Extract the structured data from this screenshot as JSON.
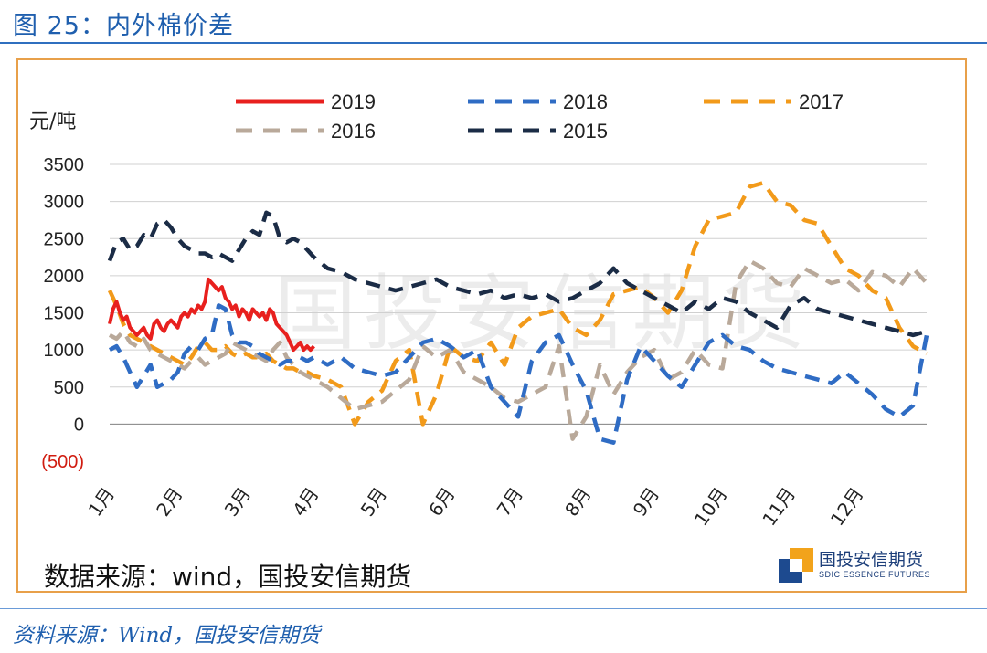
{
  "figure": {
    "title": "图 25：内外棉价差",
    "source_note": "数据来源：wind，国投安信期货",
    "footer": "资料来源：Wind，国投安信期货",
    "watermark": "国投安信期货",
    "logo": {
      "cn": "国投安信期货",
      "en": "SDIC ESSENCE FUTURES"
    }
  },
  "chart_data": {
    "type": "line",
    "title": "",
    "xlabel": "",
    "ylabel": "元/吨",
    "ylim": [
      -500,
      3500
    ],
    "yticks": [
      3500,
      3000,
      2500,
      2000,
      1500,
      1000,
      500,
      0,
      -500
    ],
    "ytick_labels": [
      "3500",
      "3000",
      "2500",
      "2000",
      "1500",
      "1000",
      "500",
      "0",
      "(500)"
    ],
    "x_range": [
      1,
      13
    ],
    "categories": [
      "1月",
      "2月",
      "3月",
      "4月",
      "5月",
      "6月",
      "7月",
      "8月",
      "9月",
      "10月",
      "11月",
      "12月"
    ],
    "grid": true,
    "legend_position": "top",
    "series": [
      {
        "name": "2019",
        "color": "#e8201e",
        "dash": "solid",
        "x": [
          1.0,
          1.05,
          1.1,
          1.15,
          1.2,
          1.25,
          1.3,
          1.35,
          1.4,
          1.45,
          1.5,
          1.55,
          1.6,
          1.65,
          1.7,
          1.75,
          1.8,
          1.85,
          1.9,
          1.95,
          2.0,
          2.05,
          2.1,
          2.15,
          2.2,
          2.25,
          2.3,
          2.35,
          2.4,
          2.45,
          2.5,
          2.55,
          2.6,
          2.65,
          2.7,
          2.75,
          2.8,
          2.85,
          2.9,
          2.95,
          3.0,
          3.05,
          3.1,
          3.15,
          3.2,
          3.25,
          3.3,
          3.35,
          3.4,
          3.45,
          3.5,
          3.55,
          3.6,
          3.65,
          3.7,
          3.75,
          3.8,
          3.85,
          3.9,
          3.95,
          4.0
        ],
        "y": [
          1350,
          1550,
          1650,
          1500,
          1400,
          1450,
          1300,
          1250,
          1200,
          1250,
          1300,
          1200,
          1150,
          1350,
          1400,
          1300,
          1250,
          1350,
          1400,
          1350,
          1300,
          1450,
          1500,
          1450,
          1550,
          1500,
          1600,
          1550,
          1650,
          1950,
          1900,
          1850,
          1800,
          1850,
          1700,
          1650,
          1550,
          1600,
          1450,
          1550,
          1500,
          1400,
          1550,
          1500,
          1450,
          1500,
          1400,
          1550,
          1500,
          1350,
          1300,
          1250,
          1200,
          1100,
          1000,
          1050,
          1100,
          1000,
          1050,
          1000,
          1050
        ]
      },
      {
        "name": "2018",
        "color": "#2f6cc4",
        "dash": "dash",
        "x": [
          1.0,
          1.1,
          1.2,
          1.3,
          1.4,
          1.5,
          1.6,
          1.7,
          1.8,
          1.9,
          2.0,
          2.1,
          2.2,
          2.3,
          2.4,
          2.5,
          2.6,
          2.7,
          2.8,
          2.9,
          3.0,
          3.1,
          3.2,
          3.3,
          3.4,
          3.5,
          3.6,
          3.7,
          3.8,
          3.9,
          4.0,
          4.2,
          4.4,
          4.6,
          4.8,
          5.0,
          5.2,
          5.4,
          5.6,
          5.8,
          6.0,
          6.2,
          6.4,
          6.6,
          6.8,
          7.0,
          7.2,
          7.4,
          7.6,
          7.8,
          8.0,
          8.2,
          8.4,
          8.6,
          8.8,
          9.0,
          9.2,
          9.4,
          9.6,
          9.8,
          10.0,
          10.2,
          10.4,
          10.6,
          10.8,
          11.0,
          11.2,
          11.4,
          11.6,
          11.8,
          12.0,
          12.2,
          12.4,
          12.6,
          12.8,
          13.0
        ],
        "y": [
          1000,
          1050,
          900,
          700,
          500,
          650,
          800,
          500,
          550,
          600,
          700,
          950,
          1050,
          1000,
          1150,
          1200,
          1600,
          1550,
          1200,
          1100,
          1100,
          1050,
          950,
          900,
          850,
          800,
          850,
          850,
          900,
          850,
          900,
          800,
          900,
          750,
          700,
          650,
          700,
          900,
          1100,
          1150,
          1050,
          900,
          1000,
          500,
          300,
          100,
          850,
          1100,
          1200,
          800,
          450,
          -200,
          -250,
          600,
          1050,
          850,
          650,
          500,
          800,
          1100,
          1200,
          1050,
          1000,
          850,
          750,
          700,
          650,
          600,
          550,
          700,
          550,
          400,
          200,
          100,
          250,
          1200
        ]
      },
      {
        "name": "2017",
        "color": "#f29a1a",
        "dash": "dash",
        "x": [
          1.0,
          1.1,
          1.2,
          1.3,
          1.4,
          1.5,
          1.6,
          1.7,
          1.8,
          1.9,
          2.0,
          2.1,
          2.2,
          2.3,
          2.4,
          2.5,
          2.6,
          2.7,
          2.8,
          2.9,
          3.0,
          3.1,
          3.2,
          3.3,
          3.4,
          3.5,
          3.6,
          3.7,
          3.8,
          3.9,
          4.0,
          4.2,
          4.4,
          4.6,
          4.8,
          5.0,
          5.2,
          5.4,
          5.6,
          5.8,
          6.0,
          6.2,
          6.4,
          6.6,
          6.8,
          7.0,
          7.2,
          7.4,
          7.6,
          7.8,
          8.0,
          8.2,
          8.4,
          8.6,
          8.8,
          9.0,
          9.2,
          9.4,
          9.6,
          9.8,
          10.0,
          10.2,
          10.4,
          10.6,
          10.8,
          11.0,
          11.2,
          11.4,
          11.6,
          11.8,
          12.0,
          12.2,
          12.4,
          12.6,
          12.8,
          13.0
        ],
        "y": [
          1800,
          1600,
          1350,
          1200,
          1150,
          1100,
          1050,
          1000,
          950,
          900,
          850,
          800,
          900,
          1050,
          1100,
          1000,
          1000,
          1050,
          950,
          900,
          950,
          900,
          900,
          950,
          850,
          800,
          750,
          750,
          700,
          700,
          650,
          600,
          500,
          0,
          300,
          450,
          850,
          1000,
          0,
          400,
          1050,
          900,
          850,
          1100,
          800,
          1300,
          1450,
          1500,
          1550,
          1300,
          1200,
          1400,
          1750,
          1800,
          1850,
          1700,
          1500,
          1800,
          2400,
          2750,
          2800,
          2850,
          3200,
          3250,
          3000,
          2950,
          2750,
          2700,
          2400,
          2100,
          2000,
          1800,
          1700,
          1300,
          1050,
          950
        ]
      },
      {
        "name": "2016",
        "color": "#b9a99a",
        "dash": "dash",
        "x": [
          1.0,
          1.1,
          1.2,
          1.3,
          1.4,
          1.5,
          1.6,
          1.7,
          1.8,
          1.9,
          2.0,
          2.1,
          2.2,
          2.3,
          2.4,
          2.5,
          2.6,
          2.7,
          2.8,
          2.9,
          3.0,
          3.1,
          3.2,
          3.3,
          3.4,
          3.5,
          3.6,
          3.7,
          3.8,
          3.9,
          4.0,
          4.2,
          4.4,
          4.6,
          4.8,
          5.0,
          5.2,
          5.4,
          5.6,
          5.8,
          6.0,
          6.2,
          6.4,
          6.6,
          6.8,
          7.0,
          7.2,
          7.4,
          7.6,
          7.8,
          8.0,
          8.2,
          8.4,
          8.6,
          8.8,
          9.0,
          9.2,
          9.4,
          9.6,
          9.8,
          10.0,
          10.2,
          10.4,
          10.6,
          10.8,
          11.0,
          11.2,
          11.4,
          11.6,
          11.8,
          12.0,
          12.2,
          12.4,
          12.6,
          12.8,
          13.0
        ],
        "y": [
          1200,
          1150,
          1250,
          1100,
          1050,
          1150,
          1000,
          950,
          900,
          850,
          800,
          750,
          850,
          900,
          800,
          850,
          900,
          950,
          1100,
          1050,
          1000,
          950,
          900,
          850,
          1000,
          1100,
          900,
          800,
          700,
          650,
          600,
          500,
          350,
          200,
          250,
          300,
          450,
          600,
          1050,
          900,
          1000,
          700,
          600,
          500,
          350,
          300,
          400,
          500,
          1050,
          -200,
          100,
          800,
          400,
          700,
          900,
          1000,
          600,
          700,
          1000,
          800,
          750,
          1900,
          2200,
          2100,
          1900,
          1850,
          2100,
          2000,
          1900,
          1950,
          1800,
          2050,
          2000,
          1850,
          2100,
          1900
        ]
      },
      {
        "name": "2015",
        "color": "#1b2c46",
        "dash": "dash",
        "x": [
          1.0,
          1.1,
          1.2,
          1.3,
          1.4,
          1.5,
          1.6,
          1.7,
          1.8,
          1.9,
          2.0,
          2.1,
          2.2,
          2.3,
          2.4,
          2.5,
          2.6,
          2.7,
          2.8,
          2.9,
          3.0,
          3.1,
          3.2,
          3.3,
          3.4,
          3.5,
          3.6,
          3.7,
          3.8,
          3.9,
          4.0,
          4.2,
          4.4,
          4.6,
          4.8,
          5.0,
          5.2,
          5.4,
          5.6,
          5.8,
          6.0,
          6.2,
          6.4,
          6.6,
          6.8,
          7.0,
          7.2,
          7.4,
          7.6,
          7.8,
          8.0,
          8.2,
          8.4,
          8.6,
          8.8,
          9.0,
          9.2,
          9.4,
          9.6,
          9.8,
          10.0,
          10.2,
          10.4,
          10.6,
          10.8,
          11.0,
          11.2,
          11.4,
          11.6,
          11.8,
          12.0,
          12.2,
          12.4,
          12.6,
          12.8,
          13.0
        ],
        "y": [
          2200,
          2450,
          2500,
          2350,
          2400,
          2550,
          2500,
          2700,
          2750,
          2650,
          2500,
          2400,
          2350,
          2300,
          2300,
          2250,
          2300,
          2250,
          2200,
          2350,
          2500,
          2600,
          2550,
          2850,
          2800,
          2500,
          2450,
          2500,
          2450,
          2350,
          2250,
          2100,
          2050,
          1950,
          1900,
          1850,
          1800,
          1850,
          1900,
          1950,
          1850,
          1800,
          1750,
          1800,
          1700,
          1750,
          1700,
          1750,
          1650,
          1700,
          1800,
          1900,
          2100,
          1900,
          1800,
          1700,
          1600,
          1500,
          1650,
          1550,
          1700,
          1650,
          1500,
          1400,
          1300,
          1600,
          1700,
          1550,
          1500,
          1450,
          1400,
          1350,
          1300,
          1250,
          1200,
          1250
        ]
      }
    ]
  }
}
